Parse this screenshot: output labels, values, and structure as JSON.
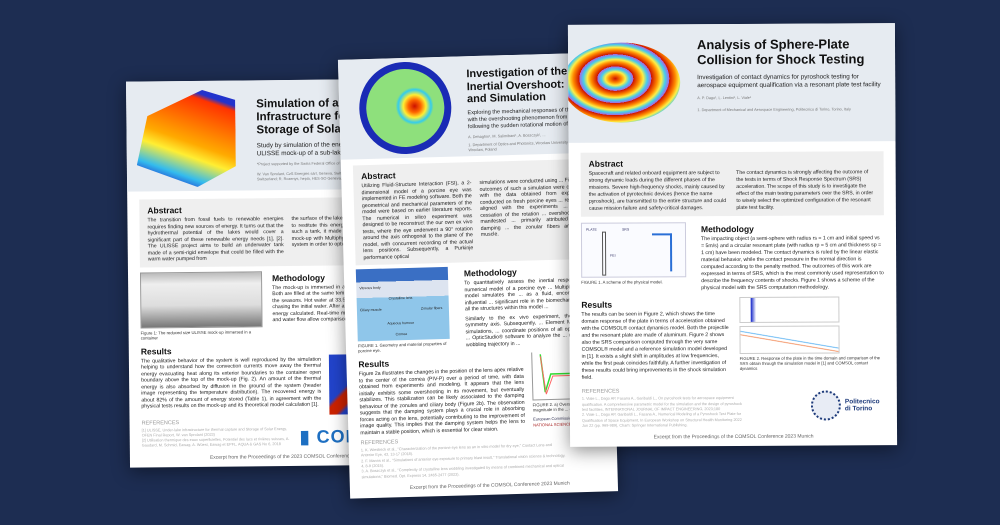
{
  "colors": {
    "background": "#1d2d52",
    "header": "#e6ebf1",
    "accent": "#1d3a7a"
  },
  "posters": [
    {
      "title": "Simulation of an Underwater Infrastructure for Capture and Storage of Solar Energy",
      "subtitle": "Study by simulation of the energy behavior of a reduced size ULISSE mock-up of a sub-lake water storage reservoir",
      "note": "*Project supported by the Swiss Federal Office of Energy",
      "authors": "W. Van Sprolant, CzS Energies sàrl, Geneva, Switzerland; D. Bello Mendes, hepia, HES-SO Geneva, Switzerland; R. Rozenys, hepia, HES-SO Geneva, Switzerland",
      "abstract_heading": "Abstract",
      "abstract_1": "The transition from fossil fuels to renewable energies requires finding new sources of energy. It turns out that the hydrothermal potential of the lakes would cover a significant part of these renewable energy needs [1], [2]. The ULISSE project aims to build an underwater tank made of a semi-rigid envelope that could be filled with the warm water pumped from",
      "abstract_2": "the surface of the lakes, heated during the hot season, and to restitute this energy during the cold season. To build such a tank, it made sense to first study a reduced size mock-up with Multiphysics modelling to understand of the system in order to optimize it.",
      "methodology_heading": "Methodology",
      "methodology": "The mock-up is immersed in a container playing the role of the lake. Both are filled at the same temperature. Then starts a cycle simulating the seasons. Hot water at 33.5 °C is injected in the ULISSE mock-up chasing the initial water. After a rest, the water is pumped back and the energy calculated. Real-time measurements with temperature sensors and water flow allow comparisons with the simulation.",
      "figure_caption": "Figure 1: The reduced size ULISSE mock-up immersed in a container",
      "results_heading": "Results",
      "results": "The qualitative behavior of the system is well reproduced by the simulation helping to understand how the convection currents move away the thermal energy evacuating heat along its exterior boundaries to the container open boundary above the top of the mock-up (Fig. 2). An amount of the thermal energy is also absorbed by diffusion in the ground of the system (header image representing the temperature distribution). The recovered energy is about 82% of the amount of energy stored (Table 1), in agreement with the physical tests results on the mock-up and its theoretical model calculation [1].",
      "references_heading": "REFERENCES",
      "references": [
        "[1] ULISSE, Under-lake infrastructure for thermal capture and Storage of Solar Energy, OFEN Final Report, W. van Sprolant (2023)",
        "[2] Utilisation thermique des eaux superficielles, Potentiel des lacs et rivières suisses, A. Gaudard, M. Schmid, Eawag, A. Wüest, Eawag et EPFL, AQUA & GAS No 6, 2018"
      ],
      "logo": "COMSOL",
      "footer": "Excerpt from the Proceedings of the 2023 COMSOL Conference"
    },
    {
      "title": "Investigation of the Lens Inertial Overshoot: Ex Vivo and Simulation",
      "subtitle": "Exploring the mechanical responses of the lens when facing with the overshooting phenomenon from inertial forces following the sudden rotational motion of the porcine eye",
      "authors": "A. Dehaghin¹, M. Salimibani¹, A. Boszczyk¹, ...",
      "affiliation": "1. Department of Optics and Photonics, Wroclaw University of Science and Technology, Wroclaw, Poland",
      "abstract_heading": "Abstract",
      "abstract_1": "Utilizing Fluid-Structure Interaction (FSI), a 2-dimensional model of a porcine eye was implemented in FE modeling software. Both the geometrical and mechanical parameters of the model were based on earlier literature reports. The numerical in silico experiment was designed to be reconstruct the our own ex vivo tests, where the eye underwent a 90° rotation around the axis orthogonal to the plane of the model, with concurrent recording of the actual lens positions. Subsequently, a Purkinje performance optical",
      "abstract_2": "simulations were conducted using ... Finally, the outcomes of such a simulation were compared with the data obtained from experiments conducted on fresh porcine eyes ... reasonably aligned with the experiments ... sudden cessation of the rotation ... overshooting was manifested ... primarily attributed to the damping ... the zonular fibers and ciliary muscle.",
      "table_labels": [
        "Vitreous body",
        "Ciliary muscle",
        "Crystalline lens",
        "Zonular fibers",
        "Aqueous humour",
        "Cornea"
      ],
      "figure_caption_1": "FIGURE 1. Geometry and material properties of porcine eye.",
      "methodology_heading": "Methodology",
      "methodology_1": "To quantitatively assess the inertial response, a 2-D numerical model of a porcine eye ... Multiphysics®. This model simulates the ... as a fluid, encompassing the influential ... significant role in the biomechanics of ... that all the structures within this model ...",
      "methodology_2": "Similarly to the ex vivo experiment, the ... vertical symmetry axis. Subsequently, ... Element Method (FEM) simulations, ... coordinate positions of all optical surfaces ... OpticStudio® software to analyze the ... motion on the wobbling trajectory in ...",
      "results_heading": "Results",
      "results": "Figure 2a illustrates the changes in the position of the lens apex relative to the center of the cornea (PIV-P) over a period of time, with data obtained from experiments and modeling. It appears that the lens initially exhibits some overshooting in its movement, but eventually stabilizes. This stabilization can be likely associated to the damping behaviour of the zonules and ciliary body (Figure 2b). The observation suggests that the damping system plays a crucial role in absorbing forces acting on the lens, potentially contributing to the improvement of image quality. This implies that the damping system helps the lens to maintain a stable position, which is essential for clear vision.",
      "legend": [
        "Simulation",
        "Experiment"
      ],
      "figure_caption_2": "FIGURE 2. a) Overshooting magnitude in the ... damping function.",
      "references_heading": "REFERENCES",
      "references": [
        "1. K. Wiesbeck et al., \"Characterization of the porcine eye lens as an in vitro model for dry eye,\" Contact Lens and Anterior Eye, 43, 13-17 (2018).",
        "2. F. Manns et al., \"Simulations of anterior eye exposure to primary blast insult,\" Translational vision science & technology, 4, 8-9 (2015).",
        "3. A. Boszczyk et al., \"Complexity of crystalline lens wobbling investigated by means of combined mechanical and optical simulations,\" Biomed. Opt. Express 14, 2465-2477 (2023)."
      ],
      "logos": [
        "European Commission",
        "NATIONAL SCIENCE CENTRE"
      ],
      "footer": "Excerpt from the Proceedings of the COMSOL Conference 2023 Munich"
    },
    {
      "title": "Analysis of Sphere-Plate Collision for Shock Testing",
      "subtitle": "Investigation of contact dynamics for pyroshock testing for aerospace equipment qualification via a resonant plate test facility",
      "authors": "A. P. Dago¹, L. Lentini¹, L. Viale¹",
      "affiliation": "1. Department of Mechanical and Aerospace Engineering, Politecnico di Torino, Torino, Italy",
      "abstract_heading": "Abstract",
      "abstract_1": "Spacecraft and related onboard equipment are subject to strong dynamic loads during the different phases of the missions. Severe high-frequency shocks, mainly caused by the activation of pyrotechnic devices (hence the name pyroshock), are transmitted to the entire structure and could cause mission failure and safety-critical damages.",
      "abstract_2": "The contact dynamics is strongly affecting the outcome of the tests in terms of Shock Response Spectrum (SRS) acceleration. The scope of this study is to investigate the effect of the main testing parameters over the SRS, in order to wisely select the optimized configuration of the resonant plate test facility.",
      "figure_caption_1": "FIGURE 1. A scheme of the physical model.",
      "scheme_labels": [
        "PLATE",
        "SRS",
        "FEI"
      ],
      "methodology_heading": "Methodology",
      "methodology": "The impacting object (a semi-sphere with radius rs = 1 cm and initial speed vs = 5m/s) and a circular resonant plate (with radius rp = 5 cm and thickness sp = 1 cm) have been modeled. The contact dynamics is ruled by the linear elastic material behavior, while the contact pressure in the normal direction is computed according to the penalty method. The outcomes of this work are expressed in terms of SRS, which is the most commonly used representation to describe the frequency contents of shocks. Figure 1 shows a scheme of the physical model with the SRS computation methodology.",
      "results_heading": "Results",
      "results": "The results can be seen in Figure 2, which shows the time domain response of the plate in terms of acceleration obtained with the COMSOL® contact dynamics model. Both the projectile and the resonant plate are made of aluminum. Figure 2 shows also the SRS comparison computed through the very same COMSOL® model and a reference simulation model developed in [1]. It exists a slight shift in amplitudes at low frequencies, while the first peak coincides faithfully. A further investigation of these results could bring improvements in the shock simulation field.",
      "figure_caption_2": "FIGURE 2. Response of the plate in the time domain and comparison of the SRS obtain through the simulation model in [1] and COMSOL contact dynamics",
      "references_heading": "REFERENCES",
      "references": [
        "1. Viale L., Dago AP, Fasana A., Garibaldi L., On pyroshock tests for aerospace equipment qualification. A comprehensive parametric model for the simulation and the design of pyroshock test facilities, INTERNATIONAL JOURNAL OF IMPACT ENGINEERING, 2023;180",
        "2. Viale L., Dago AP, Garibaldi L., Fasana A., Numerical Modeling of a Pyroshock Test Plate for Qualification of Space Equipment, In European Workshop on Structural Health Monitoring 2022 Jun 22 (pp. 969-989), Cham: Springer International Publishing."
      ],
      "logo": "Politecnico di Torino",
      "footer": "Excerpt from the Proceedings of the COMSOL Conference 2023 Munich"
    }
  ]
}
